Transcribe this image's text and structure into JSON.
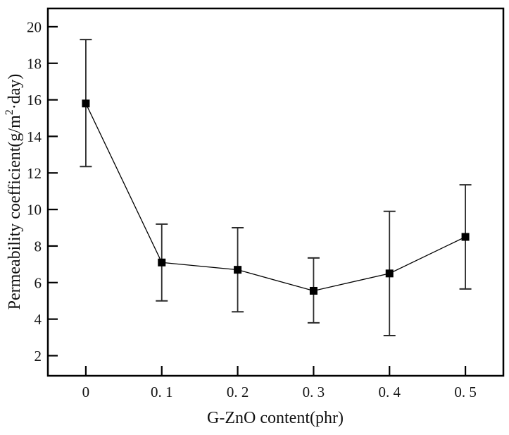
{
  "chart_data": {
    "type": "line",
    "x": [
      0,
      0.1,
      0.2,
      0.3,
      0.4,
      0.5
    ],
    "series": [
      {
        "name": "Permeability coefficient",
        "values": [
          15.8,
          7.1,
          6.7,
          5.55,
          6.5,
          8.5
        ],
        "error_upper": [
          19.3,
          9.2,
          9.0,
          7.35,
          9.9,
          11.35
        ],
        "error_lower": [
          12.35,
          5.0,
          4.4,
          3.8,
          3.1,
          5.65
        ],
        "marker": "filled-square",
        "color": "#000000"
      }
    ],
    "title": "",
    "xlabel": "G-ZnO content(phr)",
    "ylabel": "Permeability coefficient(g/m²·day)",
    "ylabel_parts": {
      "pre": "Permeability coefficient(g/m",
      "sup": "2",
      "post": "·day)"
    },
    "x_tick_labels": [
      "0",
      "0. 1",
      "0. 2",
      "0. 3",
      "0. 4",
      "0. 5"
    ],
    "y_ticks": [
      2,
      4,
      6,
      8,
      10,
      12,
      14,
      16,
      18,
      20
    ],
    "xlim": [
      -0.05,
      0.55
    ],
    "ylim": [
      0.9,
      21.0
    ],
    "grid": false,
    "legend": "none"
  },
  "style": {
    "background": "#ffffff",
    "axis_color": "#000000",
    "line_color": "#000000",
    "marker_color": "#000000",
    "errorbar_color": "#2a2a2a",
    "text_color": "#111111"
  }
}
